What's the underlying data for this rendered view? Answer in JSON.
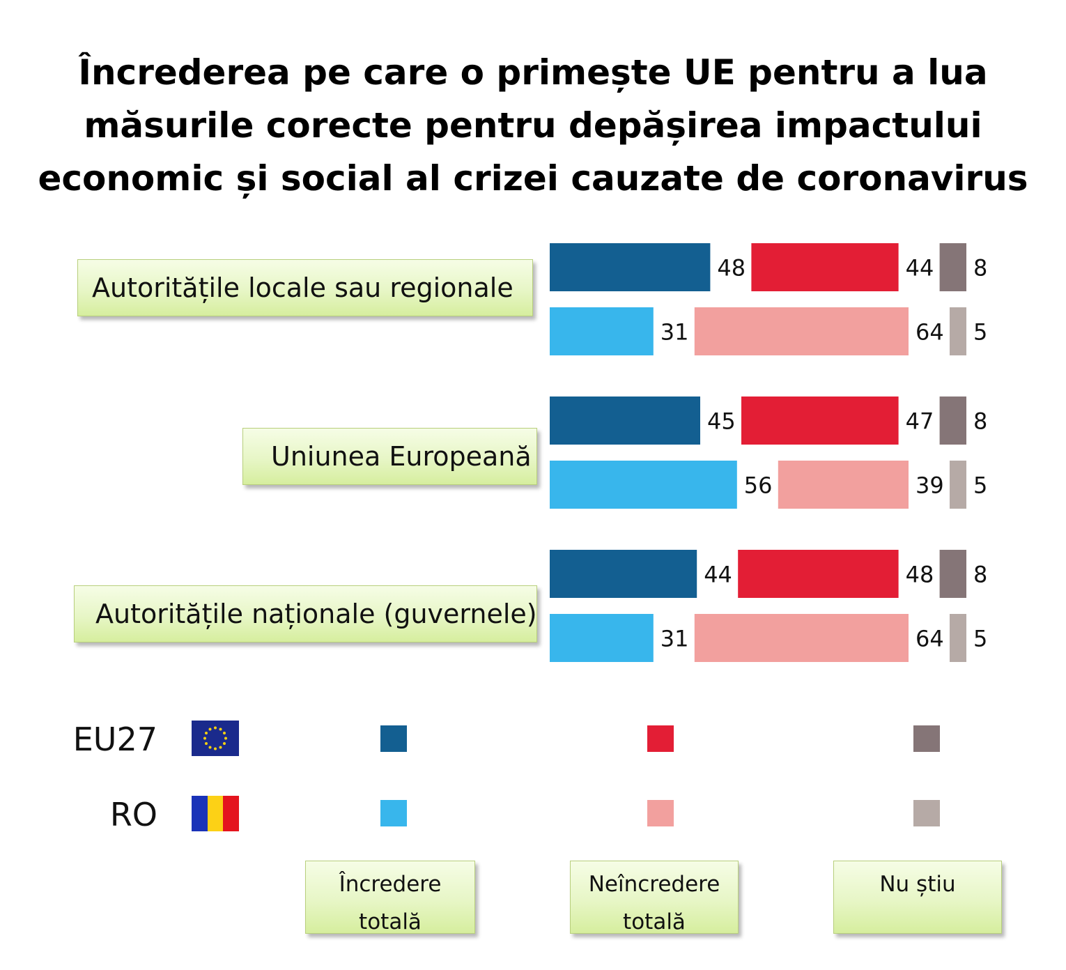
{
  "chart_data": {
    "type": "bar",
    "orientation": "horizontal",
    "stacked": "side-by-side",
    "title_lines": [
      "Încrederea pe care o primește UE pentru a lua",
      "măsurile corecte pentru depășirea impactului",
      "economic și social al crizei cauzate de coronavirus"
    ],
    "categories": [
      "Autoritățile locale sau regionale",
      "Uniunea Europeană",
      "Autoritățile naționale (guvernele)"
    ],
    "groups": [
      "EU27",
      "RO"
    ],
    "series": [
      {
        "name": "Încredere totală",
        "values": {
          "EU27": [
            48,
            45,
            44
          ],
          "RO": [
            31,
            56,
            31
          ]
        }
      },
      {
        "name": "Neîncredere totală",
        "values": {
          "EU27": [
            44,
            47,
            48
          ],
          "RO": [
            64,
            39,
            64
          ]
        }
      },
      {
        "name": "Nu știu",
        "values": {
          "EU27": [
            8,
            8,
            8
          ],
          "RO": [
            5,
            5,
            5
          ]
        }
      }
    ],
    "colors": {
      "EU27": [
        "#135f91",
        "#e31e35",
        "#857577"
      ],
      "RO": [
        "#38b6ec",
        "#f2a09e",
        "#b6aaa6"
      ]
    },
    "legend": {
      "rows": [
        "EU27",
        "RO"
      ],
      "series_labels": [
        [
          "Încredere",
          "totală"
        ],
        [
          "Neîncredere",
          "totală"
        ],
        [
          "Nu știu"
        ]
      ],
      "placement": "bottom"
    }
  },
  "flags": {
    "EU27": "eu-flag",
    "RO": "romania-flag"
  },
  "flag_colors": {
    "eu_blue": "#1a2a8c",
    "eu_star": "#f8d210",
    "ro": [
      "#1a33b8",
      "#fcd116",
      "#e4141e"
    ]
  }
}
